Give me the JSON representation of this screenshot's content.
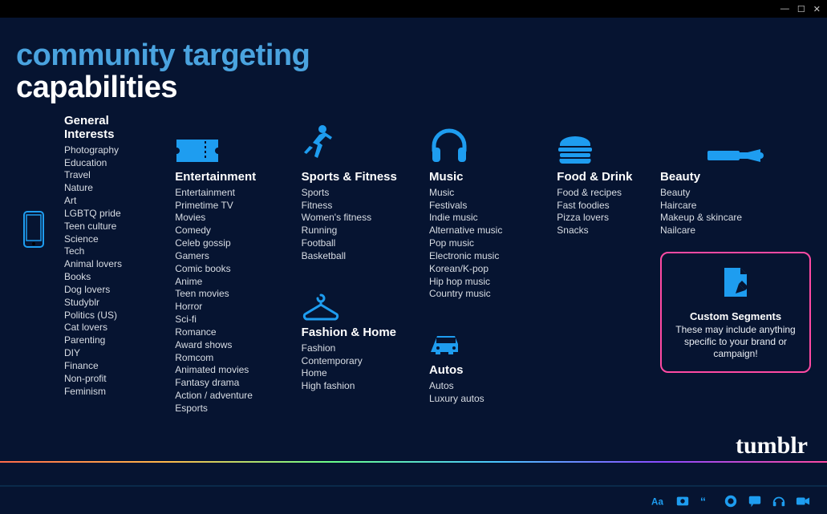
{
  "colors": {
    "background": "#061431",
    "accent_blue": "#1e9df0",
    "title_blue": "#4aa3df",
    "pink_border": "#ff4aa3",
    "text_item": "#d8dde4"
  },
  "title": {
    "line1": "community targeting",
    "line2": "capabilities"
  },
  "categories": {
    "general": {
      "title": "General Interests",
      "items": [
        "Photography",
        "Education",
        "Travel",
        "Nature",
        "Art",
        "LGBTQ pride",
        "Teen culture",
        "Science",
        "Tech",
        "Animal lovers",
        "Books",
        "Dog lovers",
        "Studyblr",
        "Politics (US)",
        "Cat lovers",
        "Parenting",
        "DIY",
        "Finance",
        "Non-profit",
        "Feminism"
      ]
    },
    "entertainment": {
      "title": "Entertainment",
      "items": [
        "Entertainment",
        "Primetime TV",
        "Movies",
        "Comedy",
        "Celeb gossip",
        "Gamers",
        "Comic books",
        "Anime",
        "Teen movies",
        "Horror",
        "Sci-fi",
        "Romance",
        "Award shows",
        "Romcom",
        "Animated movies",
        "Fantasy drama",
        "Action / adventure",
        "Esports"
      ]
    },
    "sports": {
      "title": "Sports & Fitness",
      "items": [
        "Sports",
        "Fitness",
        "Women's fitness",
        "Running",
        "Football",
        "Basketball"
      ]
    },
    "fashion": {
      "title": "Fashion & Home",
      "items": [
        "Fashion",
        "Contemporary",
        "Home",
        "High fashion"
      ]
    },
    "music": {
      "title": "Music",
      "items": [
        "Music",
        "Festivals",
        "Indie music",
        "Alternative music",
        "Pop music",
        "Electronic music",
        "Korean/K-pop",
        "Hip hop music",
        "Country music"
      ]
    },
    "autos": {
      "title": "Autos",
      "items": [
        "Autos",
        "Luxury autos"
      ]
    },
    "food": {
      "title": "Food & Drink",
      "items": [
        "Food & recipes",
        "Fast foodies",
        "Pizza lovers",
        "Snacks"
      ]
    },
    "beauty": {
      "title": "Beauty",
      "items": [
        "Beauty",
        "Haircare",
        "Makeup & skincare",
        "Nailcare"
      ]
    }
  },
  "custom": {
    "title": "Custom Segments",
    "desc": "These may include anything specific to your brand or campaign!"
  },
  "logo": "tumblr"
}
